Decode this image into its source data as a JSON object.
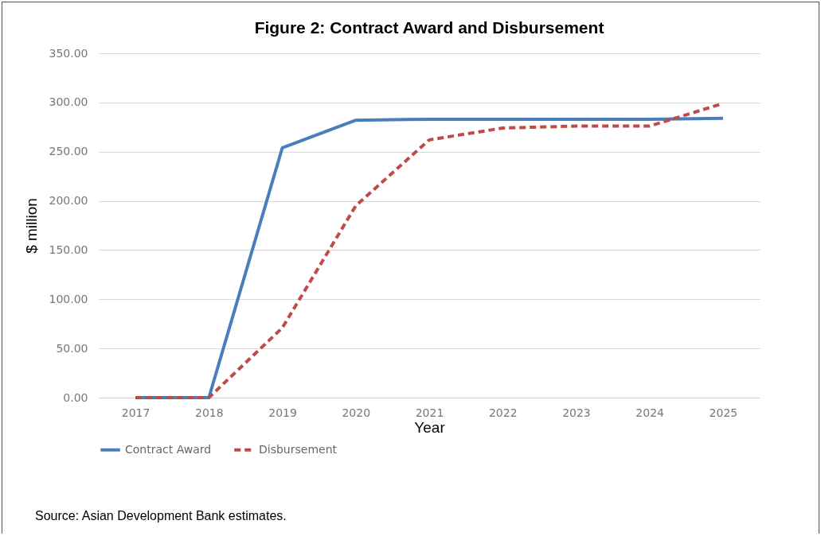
{
  "chart_data": {
    "type": "line",
    "title": "Figure 2: Contract Award and Disbursement",
    "xlabel": "Year",
    "ylabel": "$ million",
    "categories": [
      "2017",
      "2018",
      "2019",
      "2020",
      "2021",
      "2022",
      "2023",
      "2024",
      "2025"
    ],
    "series": [
      {
        "name": "Contract Award",
        "color": "#4a7ebb",
        "line_style": "solid",
        "values": [
          0,
          0,
          254,
          282,
          283,
          283,
          283,
          283,
          284
        ]
      },
      {
        "name": "Disbursement",
        "color": "#be4b48",
        "line_style": "dashed",
        "values": [
          0,
          0,
          71,
          195,
          262,
          274,
          276,
          276,
          299
        ]
      }
    ],
    "ylim": [
      0,
      350
    ],
    "yticks": [
      {
        "value": 0,
        "label": "0.00"
      },
      {
        "value": 50,
        "label": "50.00"
      },
      {
        "value": 100,
        "label": "100.00"
      },
      {
        "value": 150,
        "label": "150.00"
      },
      {
        "value": 200,
        "label": "200.00"
      },
      {
        "value": 250,
        "label": "250.00"
      },
      {
        "value": 300,
        "label": "300.00"
      },
      {
        "value": 350,
        "label": "350.00"
      }
    ],
    "grid": "y",
    "legend": "bottom",
    "marker": "none",
    "annotations": [
      "Source: Asian Development Bank estimates."
    ]
  }
}
